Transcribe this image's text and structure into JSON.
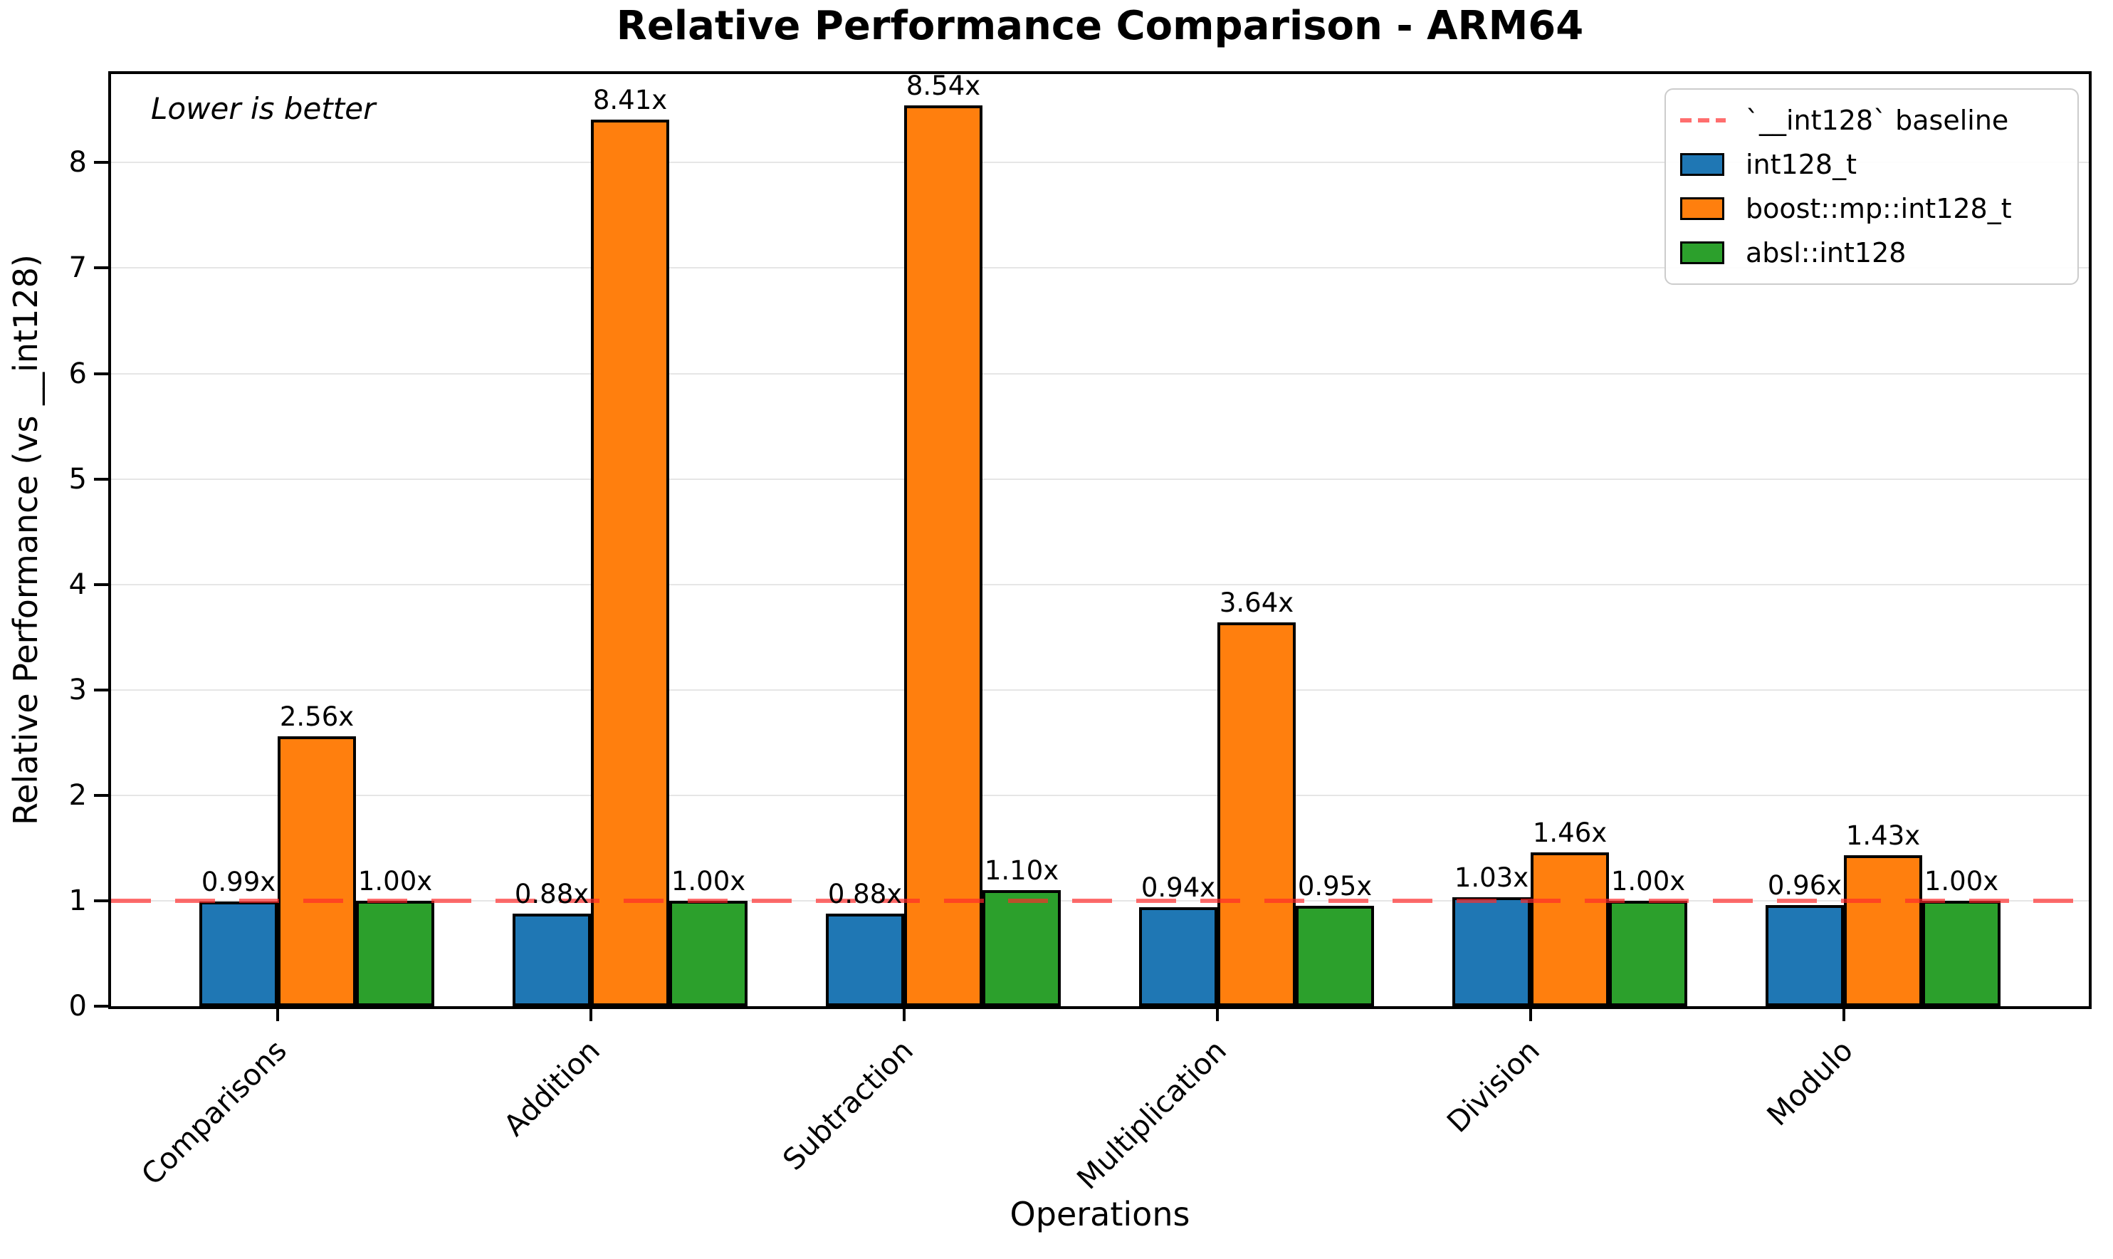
{
  "chart_data": {
    "type": "bar",
    "title": "Relative Performance Comparison - ARM64",
    "xlabel": "Operations",
    "ylabel": "Relative Performance (vs __int128)",
    "annotation": "Lower is better",
    "categories": [
      "Comparisons",
      "Addition",
      "Subtraction",
      "Multiplication",
      "Division",
      "Modulo"
    ],
    "series": [
      {
        "name": "int128_t",
        "color": "#1f77b4",
        "values": [
          0.99,
          0.88,
          0.88,
          0.94,
          1.03,
          0.96
        ]
      },
      {
        "name": "boost::mp::int128_t",
        "color": "#ff7f0e",
        "values": [
          2.56,
          8.41,
          8.54,
          3.64,
          1.46,
          1.43
        ]
      },
      {
        "name": "absl::int128",
        "color": "#2ca02c",
        "values": [
          1.0,
          1.0,
          1.1,
          0.95,
          1.0,
          1.0
        ]
      }
    ],
    "value_label_suffix": "x",
    "baseline": {
      "value": 1.0,
      "label": "`__int128` baseline",
      "color": "#ff2a2a"
    },
    "legend_position": "upper right",
    "grid": true,
    "bar_edge_color": "#000000",
    "gridline_color": "#e6e6e6",
    "ylim": [
      0,
      8.84
    ],
    "yticks": [
      0,
      1,
      2,
      3,
      4,
      5,
      6,
      7,
      8
    ]
  }
}
